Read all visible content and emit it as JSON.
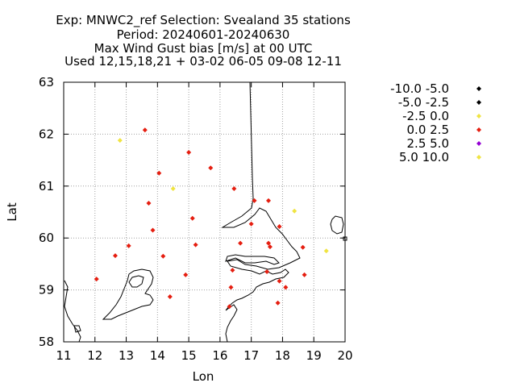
{
  "chart_data": {
    "type": "scatter",
    "title_lines": [
      "Exp: MNWC2_ref   Selection: Svealand     35 stations",
      "Period: 20240601-20240630",
      "Max Wind Gust bias [m/s] at  00 UTC",
      "Used 12,15,18,21 + 03-02 06-05 09-08 12-11"
    ],
    "xlabel": "Lon",
    "ylabel": "Lat",
    "xlim": [
      11,
      20
    ],
    "ylim": [
      58,
      63
    ],
    "xticks": [
      "11",
      "12",
      "13",
      "14",
      "15",
      "16",
      "17",
      "18",
      "19",
      "20"
    ],
    "yticks": [
      "58",
      "59",
      "60",
      "61",
      "62",
      "63"
    ],
    "grid": true,
    "legend_placement": "right",
    "series": [
      {
        "name": "-10.0 -5.0",
        "color": "#000000",
        "points": []
      },
      {
        "name": "-5.0 -2.5",
        "color": "#000000",
        "points": []
      },
      {
        "name": "-2.5 0.0",
        "color": "#f0e442",
        "points": [
          [
            12.8,
            61.88
          ],
          [
            14.5,
            60.95
          ],
          [
            18.38,
            60.52
          ],
          [
            19.4,
            59.75
          ]
        ]
      },
      {
        "name": "0.0 2.5",
        "color": "#e51e10",
        "points": [
          [
            13.6,
            62.08
          ],
          [
            15.0,
            61.65
          ],
          [
            15.7,
            61.35
          ],
          [
            14.05,
            61.25
          ],
          [
            16.45,
            60.95
          ],
          [
            17.1,
            60.72
          ],
          [
            17.55,
            60.72
          ],
          [
            13.72,
            60.67
          ],
          [
            15.12,
            60.38
          ],
          [
            17.0,
            60.27
          ],
          [
            17.9,
            60.22
          ],
          [
            13.85,
            60.15
          ],
          [
            16.65,
            59.9
          ],
          [
            17.55,
            59.9
          ],
          [
            15.22,
            59.87
          ],
          [
            17.6,
            59.83
          ],
          [
            18.65,
            59.82
          ],
          [
            13.08,
            59.85
          ],
          [
            12.65,
            59.66
          ],
          [
            14.18,
            59.65
          ],
          [
            17.5,
            59.35
          ],
          [
            16.4,
            59.38
          ],
          [
            18.7,
            59.29
          ],
          [
            14.9,
            59.29
          ],
          [
            12.05,
            59.21
          ],
          [
            17.9,
            59.17
          ],
          [
            18.1,
            59.05
          ],
          [
            16.35,
            59.05
          ],
          [
            14.4,
            58.87
          ],
          [
            17.85,
            58.75
          ],
          [
            16.3,
            58.68
          ]
        ]
      },
      {
        "name": "2.5 5.0",
        "color": "#9400d3",
        "points": []
      },
      {
        "name": "5.0 10.0",
        "color": "#f0e442",
        "points": []
      }
    ]
  }
}
